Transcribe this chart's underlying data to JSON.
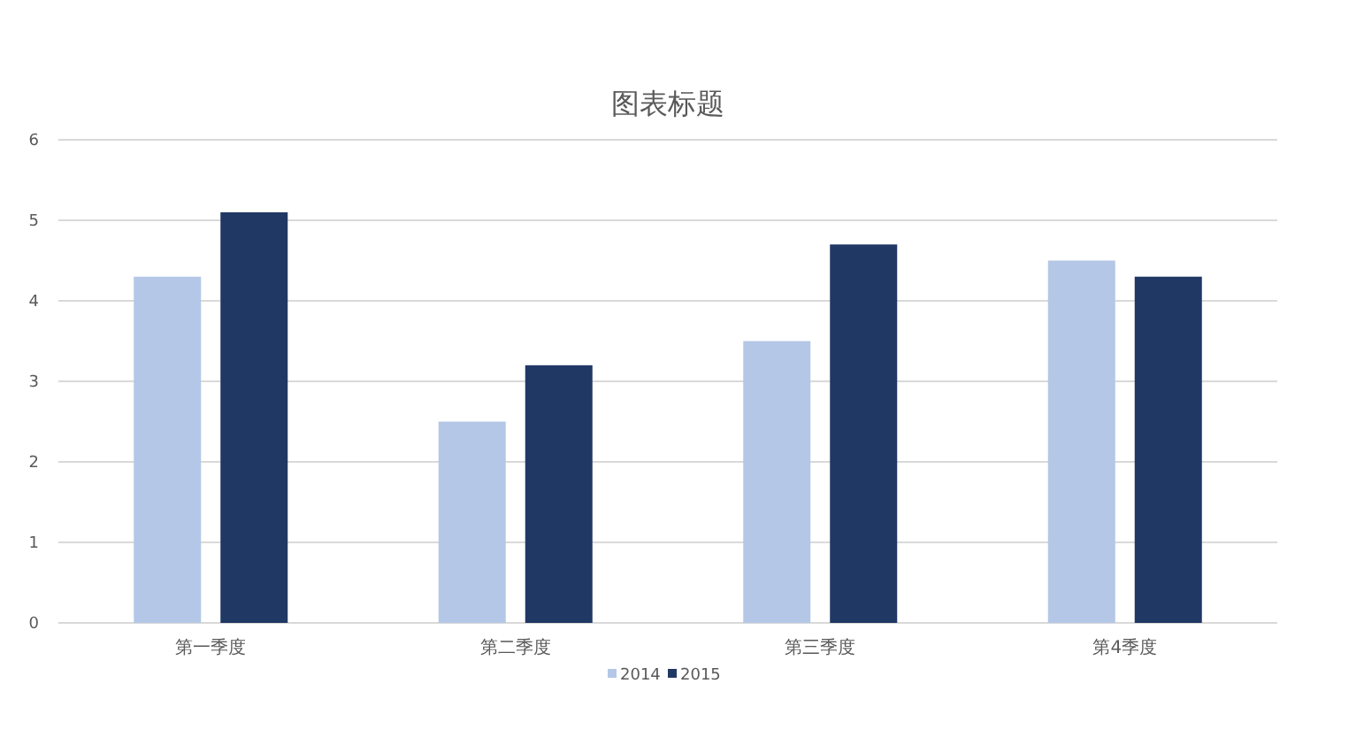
{
  "chart_data": {
    "type": "bar",
    "title": "图表标题",
    "categories": [
      "第一季度",
      "第二季度",
      "第三季度",
      "第4季度"
    ],
    "series": [
      {
        "name": "2014",
        "color": "#b4c7e7",
        "values": [
          4.3,
          2.5,
          3.5,
          4.5
        ]
      },
      {
        "name": "2015",
        "color": "#203864",
        "values": [
          5.1,
          3.2,
          4.7,
          4.3
        ]
      }
    ],
    "ylim": [
      0,
      6
    ],
    "yticks": [
      0,
      1,
      2,
      3,
      4,
      5,
      6
    ],
    "grid": "y",
    "legend": "bottom"
  }
}
